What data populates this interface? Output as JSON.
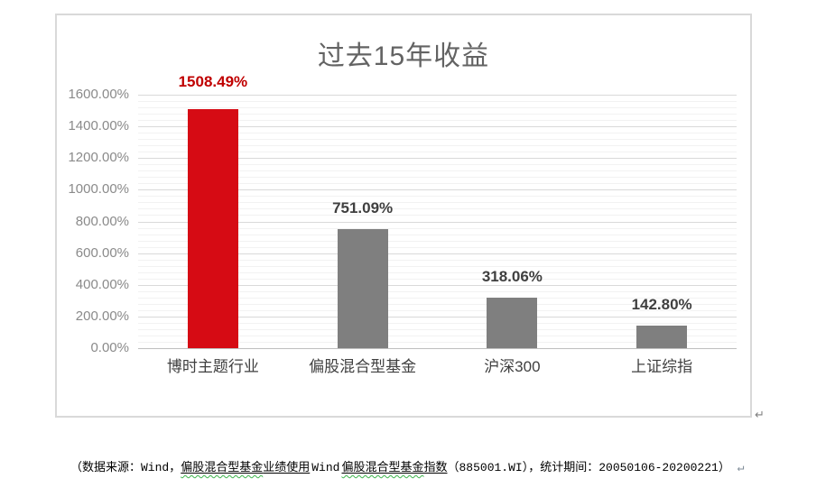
{
  "chart_data": {
    "type": "bar",
    "title": "过去15年收益",
    "categories": [
      "博时主题行业",
      "偏股混合型基金",
      "沪深300",
      "上证综指"
    ],
    "values": [
      1508.49,
      751.09,
      318.06,
      142.8
    ],
    "value_labels": [
      "1508.49%",
      "751.09%",
      "318.06%",
      "142.80%"
    ],
    "ylim": [
      0,
      1600
    ],
    "y_major_unit": 200,
    "y_minor_unit": 40,
    "y_tick_labels": [
      "1600.00%",
      "1400.00%",
      "1200.00%",
      "1000.00%",
      "800.00%",
      "600.00%",
      "400.00%",
      "200.00%",
      "0.00%"
    ],
    "bar_colors": [
      "#d60b14",
      "#7f7f7f",
      "#7f7f7f",
      "#7f7f7f"
    ],
    "value_label_colors": [
      "#c00000",
      "#3f3f3f",
      "#3f3f3f",
      "#3f3f3f"
    ],
    "grid": true,
    "legend": false
  },
  "caption": {
    "segments": [
      {
        "text": "（数据来源：Wind，",
        "style": "plain"
      },
      {
        "text": "偏股混合型基金",
        "style": "underline-wavy"
      },
      {
        "text": "业绩使用",
        "style": "underline"
      },
      {
        "text": "Wind",
        "style": "plain-latin"
      },
      {
        "text": "偏股混合型基金",
        "style": "underline-wavy"
      },
      {
        "text": "指数",
        "style": "underline"
      },
      {
        "text": "（885001.WI），统计期间：20050106-20200221）",
        "style": "plain"
      }
    ],
    "return_mark": "↵"
  },
  "page": {
    "chart_return_mark": "↵"
  }
}
